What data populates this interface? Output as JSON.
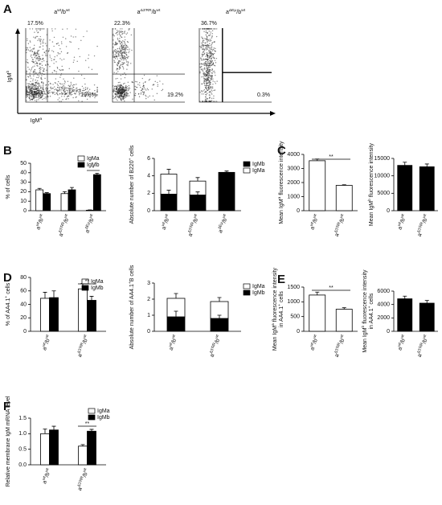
{
  "chart_data": [
    {
      "type": "flow",
      "panel": "A",
      "title": [
        "a",
        "wt",
        "/b",
        "wt"
      ],
      "ylabel": [
        "IgM",
        "b"
      ],
      "xlabel": [
        "IgM",
        "a"
      ],
      "values": [
        17.5,
        19.8
      ],
      "value_labels": [
        "17.5%",
        "19.8%"
      ]
    },
    {
      "type": "flow",
      "title": [
        "a",
        "Δ3'RR",
        "/b",
        "wt"
      ],
      "values": [
        22.3,
        19.2
      ],
      "value_labels": [
        "22.3%",
        "19.2%"
      ]
    },
    {
      "type": "flow",
      "title": [
        "a",
        "ΔEμ",
        "/b",
        "wt"
      ],
      "values": [
        36.7,
        0.3
      ],
      "value_labels": [
        "36.7%",
        "0.3%"
      ]
    },
    {
      "type": "bar",
      "panel": "B",
      "ylabel": "% of cells",
      "categories": [
        [
          "a",
          "wt",
          "/b",
          "wt"
        ],
        [
          "a",
          "Δ3'RR",
          "/b",
          "wt"
        ],
        [
          "a",
          "ΔEμ",
          "/b",
          "wt"
        ]
      ],
      "series": [
        {
          "name": "IgMa",
          "color": "#ffffff",
          "values": [
            22,
            18,
            0.5
          ],
          "errors": [
            1.5,
            2,
            0.3
          ]
        },
        {
          "name": "IgMb",
          "color": "#000000",
          "values": [
            18,
            22,
            38
          ],
          "errors": [
            1,
            2.5,
            1.5
          ]
        }
      ],
      "ylim": [
        0,
        50
      ],
      "yticks": [
        0,
        10,
        20,
        30,
        40,
        50
      ],
      "annotation": "*"
    },
    {
      "type": "stacked-bar",
      "ylabel": [
        "Absolute number of B220",
        "+",
        " cells"
      ],
      "categories": [
        [
          "a",
          "wt",
          "/b",
          "wt"
        ],
        [
          "a",
          "Δ3'RR",
          "/b",
          "wt"
        ],
        [
          "a",
          "ΔEμ",
          "/b",
          "wt"
        ]
      ],
      "series": [
        {
          "name": "IgMb",
          "color": "#000000",
          "values": [
            1.9,
            1.8,
            4.4
          ],
          "errors": [
            0.45,
            0.35,
            0.15
          ]
        },
        {
          "name": "IgMa",
          "color": "#ffffff",
          "values": [
            2.3,
            1.6,
            0
          ],
          "errors": [
            0.55,
            0.4,
            0
          ]
        }
      ],
      "ylim": [
        0,
        6
      ],
      "yticks": [
        0,
        2,
        4,
        6
      ]
    },
    {
      "type": "bar",
      "panel": "C",
      "ylabel": [
        "Mean IgM",
        "a",
        " fluorescence intensity"
      ],
      "categories": [
        [
          "a",
          "wt",
          "/b",
          "wt"
        ],
        [
          "a",
          "Δ3'RR",
          "/b",
          "wt"
        ]
      ],
      "color": "#ffffff",
      "values": [
        3550,
        1800
      ],
      "errors": [
        120,
        40
      ],
      "ylim": [
        0,
        4000
      ],
      "yticks": [
        0,
        1000,
        2000,
        3000,
        4000
      ],
      "annotation": "**"
    },
    {
      "type": "bar",
      "ylabel": [
        "Mean IgM",
        "b",
        " fluorescence intensity"
      ],
      "categories": [
        [
          "a",
          "wt",
          "/b",
          "wt"
        ],
        [
          "a",
          "Δ3'RR",
          "/b",
          "wt"
        ]
      ],
      "color": "#000000",
      "values": [
        13000,
        12600
      ],
      "errors": [
        900,
        800
      ],
      "ylim": [
        0,
        15000
      ],
      "yticks": [
        0,
        5000,
        10000,
        15000
      ]
    },
    {
      "type": "bar",
      "panel": "D",
      "ylabel": [
        "% of AA4.1",
        "+",
        " cells"
      ],
      "categories": [
        [
          "a",
          "wt",
          "/b",
          "wt"
        ],
        [
          "a",
          "Δ3'RR",
          "/b",
          "wt"
        ]
      ],
      "series": [
        {
          "name": "IgMa",
          "color": "#ffffff",
          "values": [
            49,
            63
          ],
          "errors": [
            9,
            8
          ]
        },
        {
          "name": "IgMb",
          "color": "#000000",
          "values": [
            50,
            46
          ],
          "errors": [
            10,
            6
          ]
        }
      ],
      "ylim": [
        0,
        80
      ],
      "yticks": [
        0,
        20,
        40,
        60,
        80
      ],
      "annotation": "**"
    },
    {
      "type": "stacked-bar",
      "ylabel": [
        "Absolute number of AA4.1",
        "+",
        "B cells"
      ],
      "categories": [
        [
          "a",
          "wt",
          "/b",
          "wt"
        ],
        [
          "a",
          "Δ3'RR",
          "/b",
          "wt"
        ]
      ],
      "series": [
        {
          "name": "IgMa",
          "color": "#ffffff",
          "values": [
            1.15,
            1.05
          ],
          "errors": [
            0.3,
            0.25
          ]
        },
        {
          "name": "IgMb",
          "color": "#000000",
          "values": [
            0.9,
            0.8
          ],
          "errors": [
            0.35,
            0.2
          ]
        }
      ],
      "ylim": [
        0,
        3
      ],
      "yticks": [
        0,
        1,
        2,
        3
      ]
    },
    {
      "type": "bar",
      "panel": "E",
      "ylabel": [
        "Mean IgM",
        "a",
        " fluorescence intensity"
      ],
      "ylabel2": [
        "in AA4.1",
        "+",
        " cells"
      ],
      "categories": [
        [
          "a",
          "wt",
          "/b",
          "wt"
        ],
        [
          "a",
          "Δ3'RR",
          "/b",
          "wt"
        ]
      ],
      "color": "#ffffff",
      "values": [
        1230,
        750
      ],
      "errors": [
        100,
        50
      ],
      "ylim": [
        0,
        1500
      ],
      "yticks": [
        0,
        500,
        1000,
        1500
      ],
      "annotation": "**"
    },
    {
      "type": "bar",
      "ylabel": [
        "Mean IgM",
        "b",
        " fluorescence intensity"
      ],
      "ylabel2": [
        "in AA4.1",
        "+",
        " cells"
      ],
      "categories": [
        [
          "a",
          "wt",
          "/b",
          "wt"
        ],
        [
          "a",
          "Δ3'RR",
          "/b",
          "wt"
        ]
      ],
      "color": "#000000",
      "values": [
        4850,
        4200
      ],
      "errors": [
        400,
        400
      ],
      "ylim": [
        0,
        6000
      ],
      "yticks": [
        0,
        2000,
        4000,
        6000
      ]
    },
    {
      "type": "bar",
      "panel": "F",
      "ylabel": "Relative membrane IgM mRNA level",
      "categories": [
        [
          "a",
          "wt",
          "/b",
          "wt"
        ],
        [
          "a",
          "Δ3'RR",
          "/b",
          "wt"
        ]
      ],
      "series": [
        {
          "name": "IgMa",
          "color": "#ffffff",
          "values": [
            1.0,
            0.6
          ],
          "errors": [
            0.15,
            0.05
          ]
        },
        {
          "name": "IgMb",
          "color": "#000000",
          "values": [
            1.12,
            1.08
          ],
          "errors": [
            0.12,
            0.06
          ]
        }
      ],
      "ylim": [
        0,
        1.5
      ],
      "yticks": [
        {
          "value": 0,
          "label": "0.0"
        },
        0.5,
        {
          "value": 1,
          "label": "1.0"
        },
        1.5
      ],
      "annotation": "**"
    }
  ]
}
